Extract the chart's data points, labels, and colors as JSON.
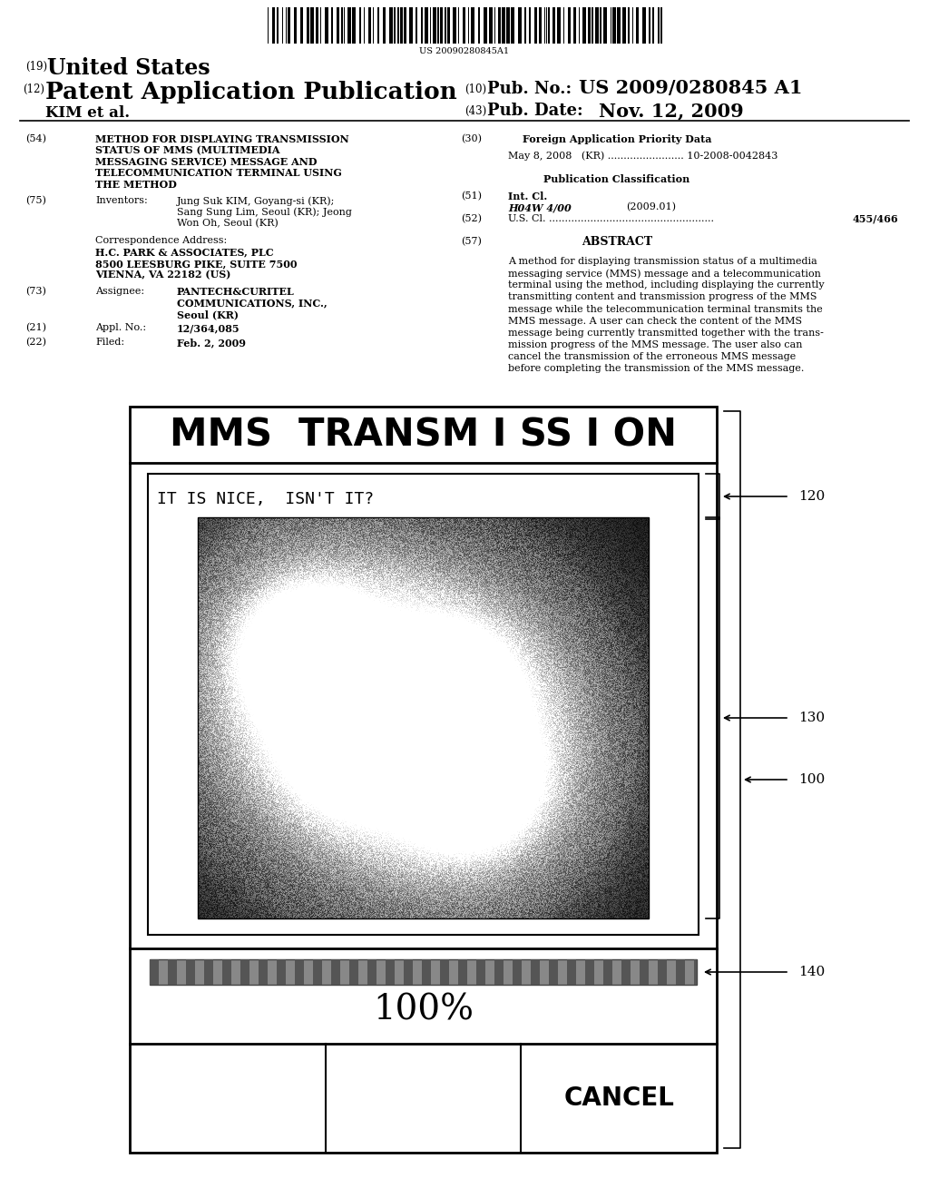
{
  "bg_color": "#ffffff",
  "barcode_text": "US 20090280845A1",
  "phone_title": "MMS  TRANSM I SS I ON",
  "phone_msg": "IT IS NICE,  ISN'T IT?",
  "phone_percent": "100%",
  "phone_cancel": "CANCEL",
  "label_100": "100",
  "label_120": "120",
  "label_130": "130",
  "label_140": "140",
  "field54_text": "METHOD FOR DISPLAYING TRANSMISSION\nSTATUS OF MMS (MULTIMEDIA\nMESSAGING SERVICE) MESSAGE AND\nTELECOMMUNICATION TERMINAL USING\nTHE METHOD",
  "field75_text_1": "Jung Suk KIM, Goyang-si (KR);",
  "field75_text_2": "Sang Sung Lim, Seoul (KR); Jeong",
  "field75_text_3": "Won Oh, Seoul (KR)",
  "field73_text_1": "PANTECH&CURITEL",
  "field73_text_2": "COMMUNICATIONS, INC.,",
  "field73_text_3": "Seoul (KR)",
  "field21_value": "12/364,085",
  "field22_value": "Feb. 2, 2009",
  "field30_text": "May 8, 2008   (KR) ........................ 10-2008-0042843",
  "field51_class": "H04W 4/00",
  "field51_year": "(2009.01)",
  "field52_dots": "U.S. Cl. ....................................................",
  "field52_value": "455/466",
  "abstract_text": "A method for displaying transmission status of a multimedia messaging service (MMS) message and a telecommunication terminal using the method, including displaying the currently transmitting content and transmission progress of the MMS message while the telecommunication terminal transmits the MMS message. A user can check the content of the MMS message being currently transmitted together with the trans-mission progress of the MMS message. The user also can cancel the transmission of the erroneous MMS message before completing the transmission of the MMS message."
}
